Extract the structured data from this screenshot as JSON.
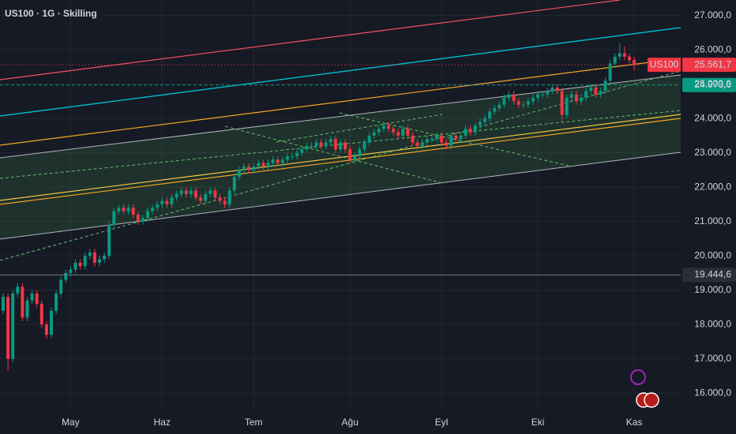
{
  "chart_data": {
    "type": "candlestick",
    "title": "US100 · 1G · Skilling",
    "categories": [
      null,
      null,
      null,
      null,
      null,
      null,
      null,
      null,
      null,
      null,
      null,
      null,
      null,
      null,
      "May",
      null,
      null,
      null,
      null,
      null,
      null,
      null,
      null,
      null,
      null,
      null,
      null,
      null,
      null,
      null,
      null,
      null,
      null,
      "Haz",
      null,
      null,
      null,
      null,
      null,
      null,
      null,
      null,
      null,
      null,
      null,
      null,
      null,
      null,
      null,
      null,
      null,
      null,
      "Tem",
      null,
      null,
      null,
      null,
      null,
      null,
      null,
      null,
      null,
      null,
      null,
      null,
      null,
      null,
      null,
      null,
      null,
      null,
      null,
      "Ağu",
      null,
      null,
      null,
      null,
      null,
      null,
      null,
      null,
      null,
      null,
      null,
      null,
      null,
      null,
      null,
      null,
      null,
      null,
      "Eyl",
      null,
      null,
      null,
      null,
      null,
      null,
      null,
      null,
      null,
      null,
      null,
      null,
      null,
      null,
      null,
      null,
      null,
      null,
      null,
      "Eki",
      null,
      null,
      null,
      null,
      null,
      null,
      null,
      null,
      null,
      null,
      null,
      null,
      null,
      null,
      null,
      null,
      null,
      null,
      null,
      "Kas"
    ],
    "series": [
      {
        "name": "US100",
        "up_color": "#089981",
        "down_color": "#f23645",
        "open": [
          18400,
          18800,
          17000,
          18900,
          19100,
          18200,
          18700,
          18900,
          18600,
          18000,
          17700,
          18400,
          18900,
          19300,
          19500,
          19600,
          19800,
          19700,
          20000,
          20100,
          19800,
          19900,
          20000,
          20900,
          21300,
          21400,
          21300,
          21400,
          21200,
          21000,
          21100,
          21300,
          21400,
          21500,
          21600,
          21500,
          21700,
          21800,
          21900,
          21800,
          21900,
          21700,
          21600,
          21800,
          21900,
          21700,
          21600,
          21500,
          21900,
          22300,
          22500,
          22600,
          22500,
          22600,
          22700,
          22600,
          22700,
          22800,
          22700,
          22800,
          22900,
          22900,
          23000,
          23100,
          23200,
          23200,
          23300,
          23200,
          23300,
          23400,
          23100,
          23300,
          23100,
          22800,
          22900,
          23100,
          23300,
          23500,
          23600,
          23700,
          23800,
          23700,
          23600,
          23500,
          23700,
          23500,
          23300,
          23200,
          23300,
          23400,
          23400,
          23500,
          23300,
          23200,
          23500,
          23400,
          23500,
          23700,
          23600,
          23800,
          23900,
          24000,
          24200,
          24300,
          24400,
          24600,
          24700,
          24500,
          24400,
          24400,
          24500,
          24600,
          24700,
          24700,
          24800,
          24900,
          24800,
          24100,
          24600,
          24700,
          24500,
          24600,
          24800,
          24900,
          24700,
          24800,
          25100,
          25600,
          25800,
          25900,
          25800,
          25700
        ],
        "high": [
          18900,
          18900,
          19000,
          19200,
          19200,
          18800,
          19000,
          19000,
          18700,
          18100,
          18500,
          19000,
          19400,
          19600,
          19700,
          19900,
          19900,
          20100,
          20200,
          20200,
          20000,
          20100,
          21000,
          21400,
          21500,
          21500,
          21500,
          21500,
          21300,
          21200,
          21400,
          21500,
          21600,
          21700,
          21700,
          21800,
          21900,
          22000,
          22000,
          22000,
          22000,
          21800,
          21900,
          22000,
          22000,
          21800,
          21700,
          22000,
          22400,
          22600,
          22700,
          22700,
          22700,
          22800,
          22800,
          22800,
          22900,
          22900,
          22900,
          23000,
          23000,
          23100,
          23200,
          23300,
          23300,
          23400,
          23400,
          23400,
          23500,
          23500,
          23400,
          23400,
          23200,
          23000,
          23200,
          23400,
          23600,
          23700,
          23800,
          23900,
          23900,
          23800,
          23700,
          23800,
          23800,
          23600,
          23400,
          23400,
          23500,
          23500,
          23600,
          23600,
          23400,
          23600,
          23600,
          23600,
          23800,
          23800,
          23900,
          24000,
          24100,
          24300,
          24400,
          24500,
          24700,
          24800,
          24800,
          24600,
          24500,
          24600,
          24700,
          24800,
          24800,
          24900,
          25000,
          25000,
          24900,
          24700,
          24800,
          24800,
          24700,
          24900,
          25000,
          25000,
          24900,
          25200,
          25700,
          25900,
          26200,
          26100,
          25900,
          25800
        ],
        "low": [
          18300,
          16650,
          16900,
          18800,
          18100,
          18100,
          18600,
          18500,
          17900,
          17600,
          17600,
          18300,
          18800,
          19200,
          19400,
          19500,
          19600,
          19600,
          19900,
          19700,
          19700,
          19800,
          19900,
          20800,
          21200,
          21200,
          21200,
          21100,
          20900,
          20900,
          21000,
          21200,
          21300,
          21400,
          21400,
          21400,
          21600,
          21700,
          21700,
          21700,
          21600,
          21500,
          21500,
          21700,
          21600,
          21500,
          21400,
          21400,
          21800,
          22200,
          22400,
          22400,
          22400,
          22500,
          22500,
          22500,
          22600,
          22600,
          22600,
          22700,
          22800,
          22800,
          22900,
          23000,
          23100,
          23100,
          23100,
          23100,
          23200,
          23000,
          23000,
          23000,
          22700,
          22700,
          22800,
          23000,
          23200,
          23400,
          23500,
          23600,
          23600,
          23500,
          23400,
          23400,
          23400,
          23200,
          23100,
          23100,
          23200,
          23300,
          23300,
          23200,
          23100,
          23100,
          23300,
          23300,
          23400,
          23500,
          23500,
          23700,
          23800,
          23900,
          24100,
          24200,
          24300,
          24500,
          24400,
          24300,
          24300,
          24300,
          24400,
          24500,
          24600,
          24600,
          24700,
          24700,
          23900,
          24000,
          24500,
          24400,
          24400,
          24500,
          24700,
          24600,
          24600,
          24700,
          25000,
          25500,
          25700,
          25700,
          25600,
          25400
        ],
        "close": [
          18800,
          17000,
          18900,
          19100,
          18200,
          18700,
          18900,
          18600,
          18000,
          17700,
          18400,
          18900,
          19300,
          19500,
          19600,
          19800,
          19700,
          20000,
          20100,
          19800,
          19900,
          20000,
          20900,
          21300,
          21400,
          21300,
          21400,
          21200,
          21000,
          21100,
          21300,
          21400,
          21500,
          21600,
          21500,
          21700,
          21800,
          21900,
          21800,
          21900,
          21700,
          21600,
          21800,
          21900,
          21700,
          21600,
          21500,
          21900,
          22300,
          22500,
          22600,
          22500,
          22600,
          22700,
          22600,
          22700,
          22800,
          22700,
          22800,
          22900,
          22900,
          23000,
          23100,
          23200,
          23200,
          23300,
          23200,
          23300,
          23400,
          23100,
          23300,
          23100,
          22800,
          22900,
          23100,
          23300,
          23500,
          23600,
          23700,
          23800,
          23700,
          23600,
          23500,
          23700,
          23500,
          23300,
          23200,
          23300,
          23400,
          23400,
          23500,
          23300,
          23200,
          23500,
          23400,
          23500,
          23700,
          23600,
          23800,
          23900,
          24000,
          24200,
          24300,
          24400,
          24600,
          24700,
          24500,
          24400,
          24400,
          24500,
          24600,
          24700,
          24700,
          24800,
          24900,
          24800,
          24100,
          24600,
          24700,
          24500,
          24600,
          24800,
          24900,
          24700,
          24800,
          25100,
          25600,
          25800,
          25900,
          25800,
          25700,
          25561.7
        ]
      }
    ],
    "last_price": {
      "value": 25561.7,
      "label": "25.561,7"
    },
    "levels": [
      {
        "value": 24973.6,
        "label": "24.973,6",
        "color": "#089981",
        "style": "dashed"
      },
      {
        "value": 19444.6,
        "label": "19.444,6",
        "color": "#787b86",
        "style": "solid"
      }
    ],
    "ylim": [
      15500,
      27450
    ],
    "yticks": [
      {
        "value": 16000,
        "label": "16.000,0"
      },
      {
        "value": 17000,
        "label": "17.000,0"
      },
      {
        "value": 18000,
        "label": "18.000,0"
      },
      {
        "value": 19000,
        "label": "19.000,0"
      },
      {
        "value": 20000,
        "label": "20.000,0"
      },
      {
        "value": 21000,
        "label": "21.000,0"
      },
      {
        "value": 22000,
        "label": "22.000,0"
      },
      {
        "value": 23000,
        "label": "23.000,0"
      },
      {
        "value": 24000,
        "label": "24.000,0"
      },
      {
        "value": 25000,
        "label": "25.000,0"
      },
      {
        "value": 26000,
        "label": "26.000,0"
      },
      {
        "value": 27000,
        "label": "27.000,0"
      }
    ],
    "grid": true
  }
}
